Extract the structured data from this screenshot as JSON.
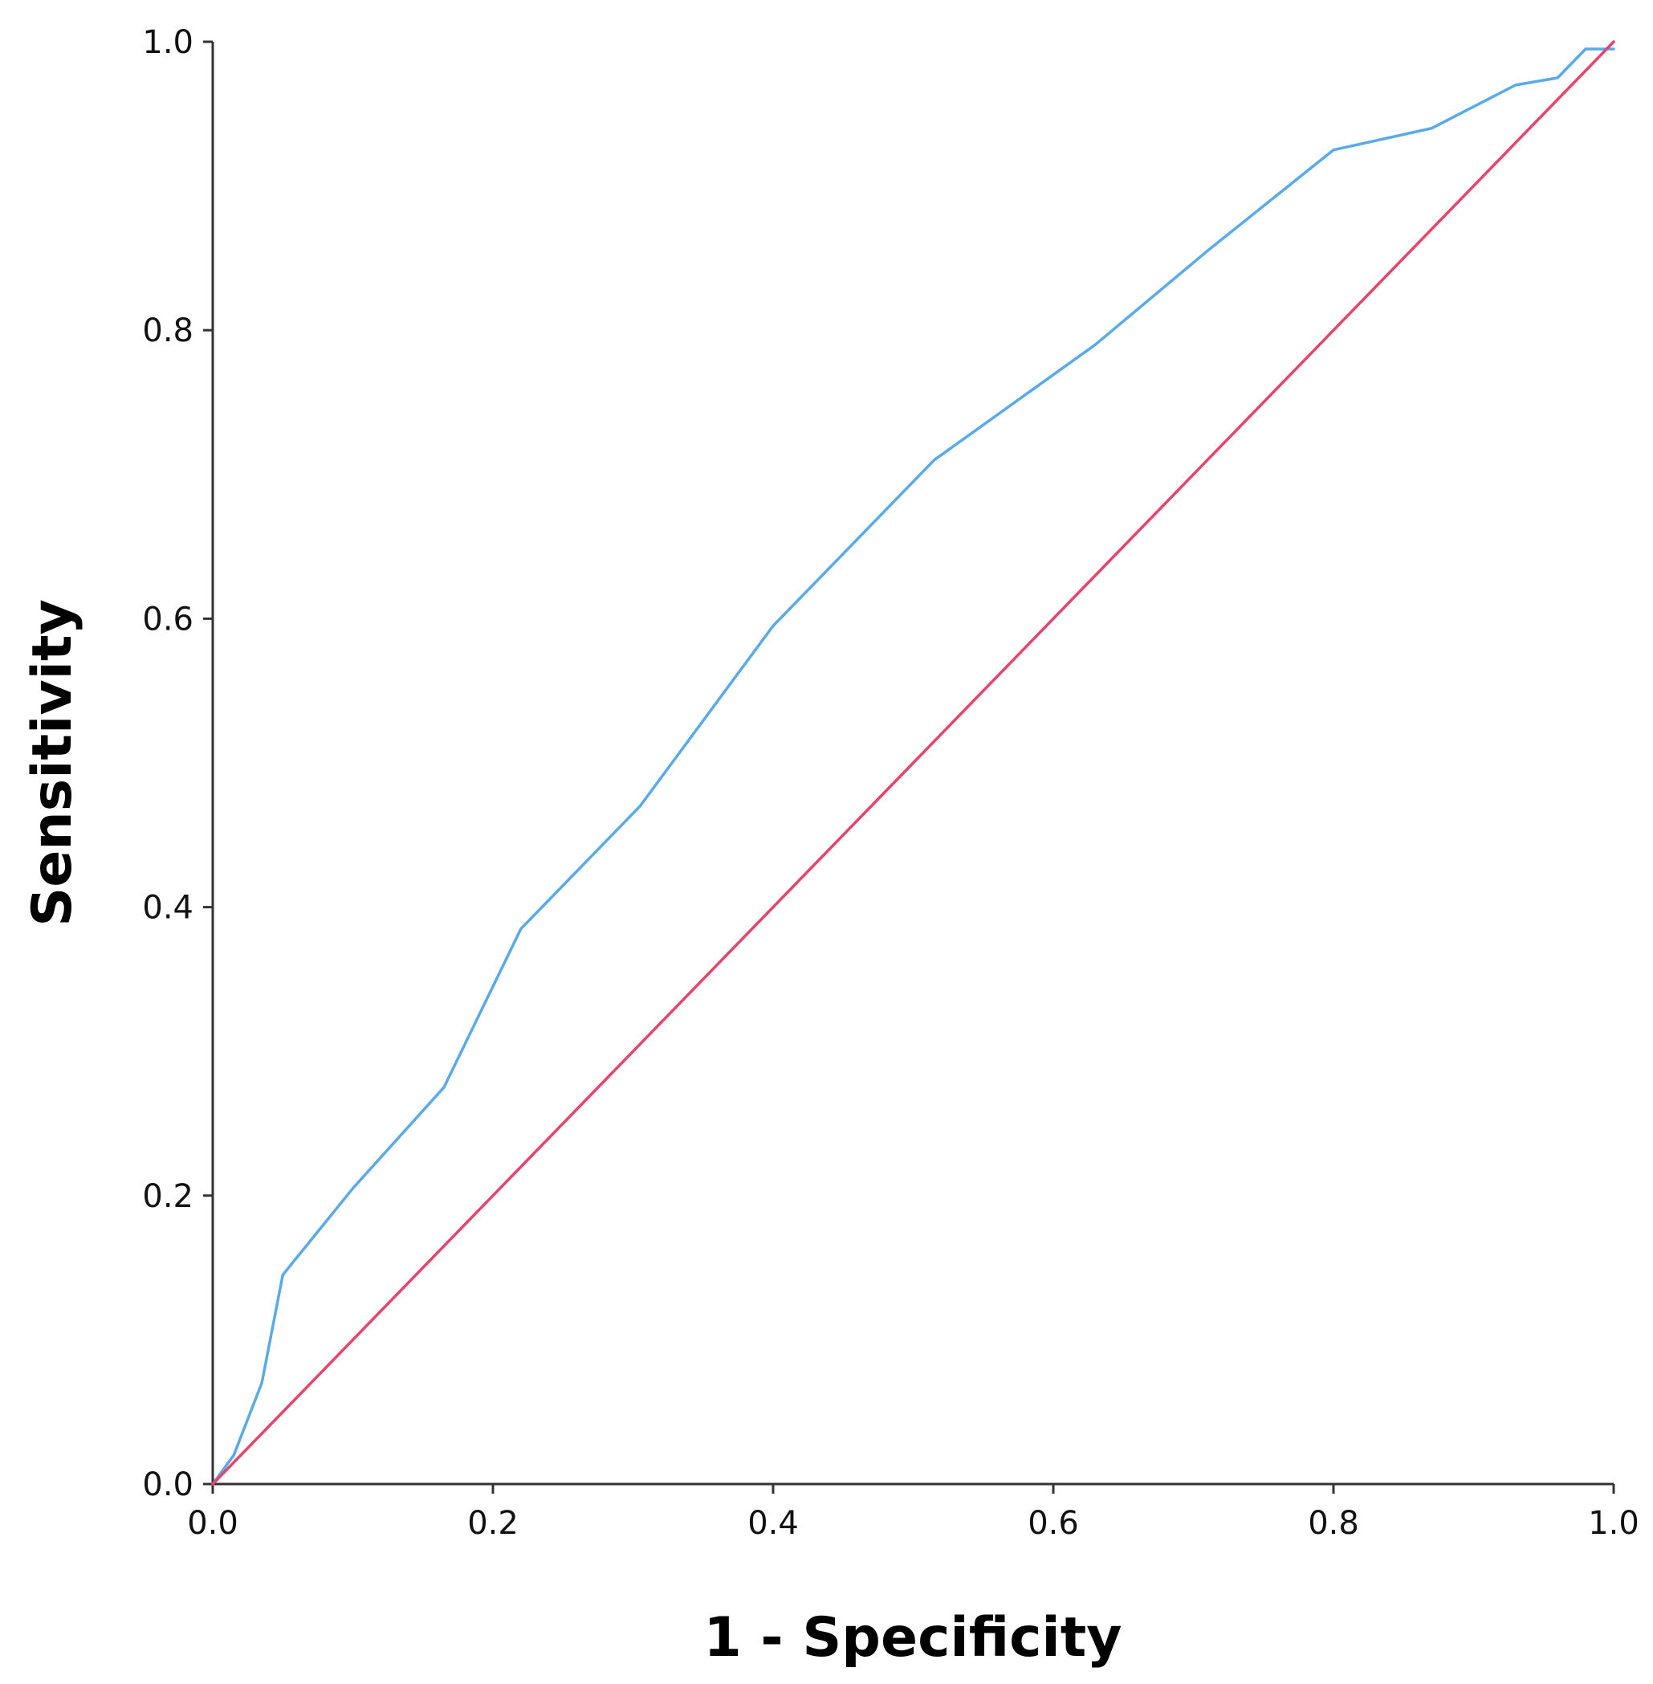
{
  "chart_data": {
    "type": "line",
    "title": "",
    "xlabel": "1 - Specificity",
    "ylabel": "Sensitivity",
    "xlim": [
      0,
      1
    ],
    "ylim": [
      0,
      1
    ],
    "x_ticks": [
      "0.0",
      "0.2",
      "0.4",
      "0.6",
      "0.8",
      "1.0"
    ],
    "y_ticks": [
      "0.0",
      "0.2",
      "0.4",
      "0.6",
      "0.8",
      "1.0"
    ],
    "grid": false,
    "legend": "none",
    "series": [
      {
        "color": "#5aa9ea",
        "points": [
          [
            0.0,
            0.0
          ],
          [
            0.015,
            0.02
          ],
          [
            0.035,
            0.07
          ],
          [
            0.05,
            0.145
          ],
          [
            0.1,
            0.205
          ],
          [
            0.165,
            0.275
          ],
          [
            0.22,
            0.385
          ],
          [
            0.305,
            0.47
          ],
          [
            0.4,
            0.595
          ],
          [
            0.515,
            0.71
          ],
          [
            0.63,
            0.79
          ],
          [
            0.71,
            0.855
          ],
          [
            0.8,
            0.925
          ],
          [
            0.87,
            0.94
          ],
          [
            0.93,
            0.97
          ],
          [
            0.96,
            0.975
          ],
          [
            0.98,
            0.995
          ],
          [
            1.0,
            0.995
          ]
        ]
      },
      {
        "color": "#e8436a",
        "points": [
          [
            0.0,
            0.0
          ],
          [
            1.0,
            1.0
          ]
        ]
      }
    ]
  }
}
